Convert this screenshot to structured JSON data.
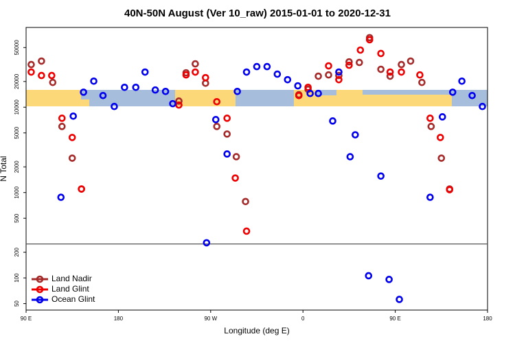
{
  "chart_data": {
    "type": "scatter",
    "title": "40N-50N August (Ver 10_raw)   2015-01-01 to 2020-12-31",
    "xlabel": "Longitude (deg E)",
    "ylabel": "N Total",
    "log_y": true,
    "legend": "bottomleft",
    "reference_line": 250,
    "xlim": [
      90,
      540
    ],
    "xticks": [
      {
        "value": 90,
        "label": "90 E"
      },
      {
        "value": 180,
        "label": "180"
      },
      {
        "value": 270,
        "label": "90 W"
      },
      {
        "value": 360,
        "label": "0"
      },
      {
        "value": 450,
        "label": "90 E"
      },
      {
        "value": 540,
        "label": "180"
      }
    ],
    "ylim": [
      42,
      86000
    ],
    "yticks": [
      50,
      100,
      200,
      500,
      1000,
      2000,
      5000,
      10000,
      20000,
      50000
    ],
    "series": [
      {
        "name": "Land Nadir",
        "color": "#a52a2a",
        "x": [
          95,
          105,
          116,
          125,
          135,
          144,
          239,
          246,
          255,
          265,
          276,
          286,
          295,
          304,
          356,
          365,
          375,
          385,
          395,
          405,
          415,
          425,
          436,
          445,
          456,
          465,
          476,
          485,
          495,
          503
        ],
        "values": [
          31600,
          34700,
          19500,
          5950,
          2530,
          1100,
          11800,
          25300,
          32200,
          19100,
          5950,
          4850,
          2630,
          785,
          14000,
          16200,
          23100,
          23900,
          23500,
          34000,
          33400,
          65300,
          27800,
          23100,
          31600,
          34700,
          19500,
          5950,
          2530,
          1100
        ]
      },
      {
        "name": "Land Glint",
        "color": "#ee0000",
        "x": [
          95,
          105,
          115,
          125,
          135,
          144,
          239,
          246,
          255,
          265,
          276,
          286,
          294,
          305,
          356,
          365,
          385,
          395,
          405,
          416,
          425,
          436,
          445,
          456,
          474,
          484,
          494,
          503
        ],
        "values": [
          25800,
          23500,
          23500,
          7430,
          4420,
          1100,
          10600,
          23900,
          25800,
          22200,
          11600,
          7430,
          1480,
          353,
          13700,
          17100,
          30500,
          21000,
          31000,
          46700,
          61700,
          42600,
          25800,
          25800,
          23900,
          7430,
          4420,
          1080
        ]
      },
      {
        "name": "Ocean Glint",
        "color": "#0000ee",
        "x": [
          124,
          136,
          146,
          156,
          165,
          176,
          186,
          197,
          206,
          216,
          226,
          233,
          266,
          275,
          286,
          296,
          305,
          315,
          325,
          335,
          345,
          355,
          367,
          375,
          389,
          395,
          406,
          411,
          424,
          436,
          444,
          454,
          484,
          496,
          506,
          515,
          525,
          535
        ],
        "values": [
          880,
          7860,
          15000,
          20200,
          13700,
          10200,
          17100,
          17100,
          25800,
          15900,
          15300,
          11000,
          258,
          7160,
          2830,
          15300,
          25800,
          29900,
          29900,
          24400,
          21000,
          17800,
          14500,
          14500,
          6900,
          25800,
          2630,
          4750,
          106,
          1560,
          96,
          56,
          880,
          7710,
          15000,
          20200,
          13700,
          10200
        ]
      }
    ]
  }
}
